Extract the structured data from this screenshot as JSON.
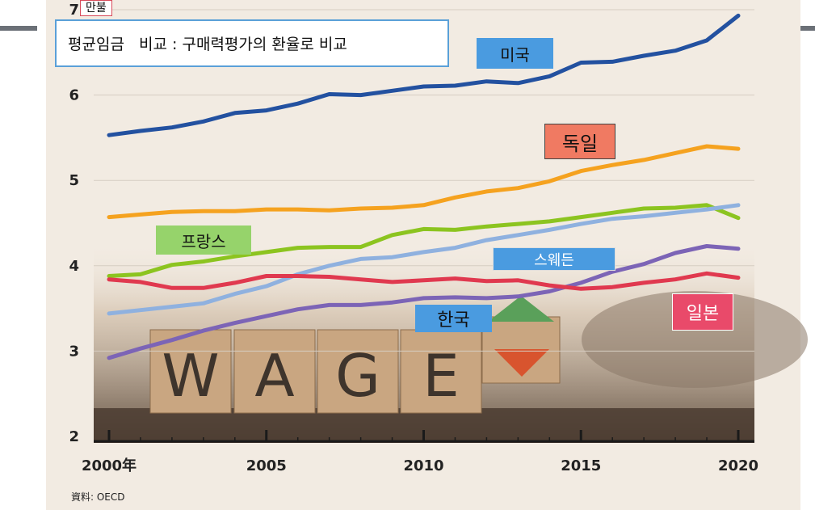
{
  "header": {
    "title": "평균임금   비교 : 구매력평가의 환율로 비교",
    "unit": "만불"
  },
  "source": "資料: OECD",
  "colors": {
    "panel_bg": "#f2ebe2",
    "us": "#2351a0",
    "germany": "#f5a21f",
    "france": "#8cc420",
    "sweden": "#8fb1df",
    "korea": "#7c64b6",
    "japan": "#e0394f"
  },
  "chart_data": {
    "type": "line",
    "title": "평균임금   비교 : 구매력평가의 환율로 비교",
    "ylabel": "만불",
    "ylim": [
      2,
      7
    ],
    "xlim": [
      2000,
      2020
    ],
    "grid": true,
    "x_tick_labels": [
      "2000年",
      "2005",
      "2010",
      "2015",
      "2020"
    ],
    "x_ticks": [
      2000,
      2005,
      2010,
      2015,
      2020
    ],
    "y_tick_labels": [
      "2",
      "3",
      "4",
      "5",
      "6",
      "7"
    ],
    "y_ticks": [
      2,
      3,
      4,
      5,
      6,
      7
    ],
    "x": [
      2000,
      2001,
      2002,
      2003,
      2004,
      2005,
      2006,
      2007,
      2008,
      2009,
      2010,
      2011,
      2012,
      2013,
      2014,
      2015,
      2016,
      2017,
      2018,
      2019,
      2020
    ],
    "series": [
      {
        "key": "us",
        "name": "미국",
        "values": [
          5.53,
          5.58,
          5.62,
          5.69,
          5.79,
          5.82,
          5.9,
          6.01,
          6.0,
          6.05,
          6.1,
          6.11,
          6.16,
          6.14,
          6.22,
          6.38,
          6.39,
          6.46,
          6.52,
          6.64,
          6.93
        ]
      },
      {
        "key": "germany",
        "name": "독일",
        "values": [
          4.57,
          4.6,
          4.63,
          4.64,
          4.64,
          4.66,
          4.66,
          4.65,
          4.67,
          4.68,
          4.71,
          4.8,
          4.87,
          4.91,
          4.99,
          5.11,
          5.18,
          5.24,
          5.32,
          5.4,
          5.37
        ]
      },
      {
        "key": "france",
        "name": "프랑스",
        "values": [
          3.88,
          3.9,
          4.01,
          4.05,
          4.11,
          4.16,
          4.21,
          4.22,
          4.22,
          4.36,
          4.43,
          4.42,
          4.46,
          4.49,
          4.52,
          4.57,
          4.62,
          4.67,
          4.68,
          4.71,
          4.56
        ]
      },
      {
        "key": "sweden",
        "name": "스웨든",
        "values": [
          3.44,
          3.48,
          3.52,
          3.56,
          3.67,
          3.76,
          3.9,
          4.0,
          4.08,
          4.1,
          4.16,
          4.21,
          4.3,
          4.36,
          4.42,
          4.49,
          4.55,
          4.58,
          4.62,
          4.66,
          4.71
        ]
      },
      {
        "key": "korea",
        "name": "한국",
        "values": [
          2.92,
          3.03,
          3.13,
          3.24,
          3.33,
          3.41,
          3.49,
          3.54,
          3.54,
          3.57,
          3.62,
          3.63,
          3.62,
          3.64,
          3.7,
          3.8,
          3.93,
          4.02,
          4.15,
          4.23,
          4.2
        ]
      },
      {
        "key": "japan",
        "name": "일본",
        "values": [
          3.84,
          3.81,
          3.74,
          3.74,
          3.8,
          3.88,
          3.88,
          3.87,
          3.84,
          3.81,
          3.83,
          3.85,
          3.82,
          3.83,
          3.77,
          3.73,
          3.75,
          3.8,
          3.84,
          3.91,
          3.86
        ]
      }
    ]
  },
  "series_labels": [
    {
      "key": "us",
      "text": "미국",
      "bg": "#4a9be0"
    },
    {
      "key": "germany",
      "text": "독일",
      "bg": "#f07a62"
    },
    {
      "key": "france",
      "text": "프랑스",
      "bg": "#96d36b"
    },
    {
      "key": "sweden",
      "text": "스웨든",
      "bg": "#4a9be0"
    },
    {
      "key": "korea",
      "text": "한국",
      "bg": "#4a9be0"
    },
    {
      "key": "japan",
      "text": "일본",
      "bg": "#e94a6a"
    }
  ]
}
